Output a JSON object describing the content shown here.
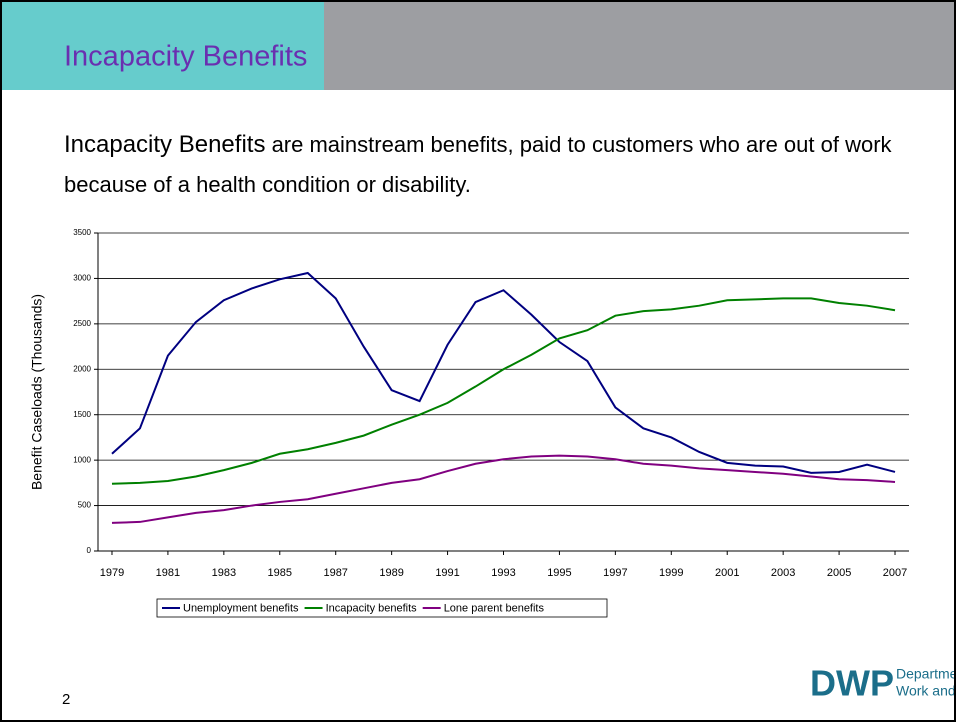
{
  "slide_title": "Incapacity Benefits",
  "body": {
    "lead": "Incapacity Benefits",
    "text": " are mainstream benefits, paid to customers who are out of work because of a health condition or disability."
  },
  "page_number": "2",
  "logo": {
    "mark": "DWP",
    "line1": "Department for",
    "line2": "Work and Pensions"
  },
  "chart_data": {
    "type": "line",
    "y_label": "Benefit Caseloads (Thousands)",
    "x": [
      1979,
      1980,
      1981,
      1982,
      1983,
      1984,
      1985,
      1986,
      1987,
      1988,
      1989,
      1990,
      1991,
      1992,
      1993,
      1994,
      1995,
      1996,
      1997,
      1998,
      1999,
      2000,
      2001,
      2002,
      2003,
      2004,
      2005,
      2006,
      2007
    ],
    "xlim": [
      1978.5,
      2007.5
    ],
    "xticks": [
      1979,
      1981,
      1983,
      1985,
      1987,
      1989,
      1991,
      1993,
      1995,
      1997,
      1999,
      2001,
      2003,
      2005,
      2007
    ],
    "ylim": [
      0,
      3500
    ],
    "yticks": [
      0,
      500,
      1000,
      1500,
      2000,
      2500,
      3000,
      3500
    ],
    "grid": true,
    "legend": "bottom",
    "series": [
      {
        "name": "Unemployment benefits",
        "color": "#000080",
        "values": [
          1070,
          1350,
          2150,
          2520,
          2760,
          2890,
          2990,
          3060,
          2780,
          2250,
          1770,
          1650,
          2270,
          2740,
          2870,
          2600,
          2300,
          2090,
          1580,
          1350,
          1250,
          1090,
          970,
          940,
          930,
          860,
          870,
          950,
          870
        ]
      },
      {
        "name": "Incapacity benefits",
        "color": "#008000",
        "values": [
          740,
          750,
          770,
          820,
          890,
          970,
          1070,
          1120,
          1190,
          1270,
          1390,
          1500,
          1630,
          1810,
          2000,
          2160,
          2340,
          2430,
          2590,
          2640,
          2660,
          2700,
          2760,
          2770,
          2780,
          2780,
          2730,
          2700,
          2650
        ]
      },
      {
        "name": "Lone parent benefits",
        "color": "#800080",
        "values": [
          310,
          320,
          370,
          420,
          450,
          500,
          540,
          570,
          630,
          690,
          750,
          790,
          880,
          960,
          1010,
          1040,
          1050,
          1040,
          1010,
          960,
          940,
          910,
          890,
          870,
          850,
          820,
          790,
          780,
          760
        ]
      }
    ]
  }
}
